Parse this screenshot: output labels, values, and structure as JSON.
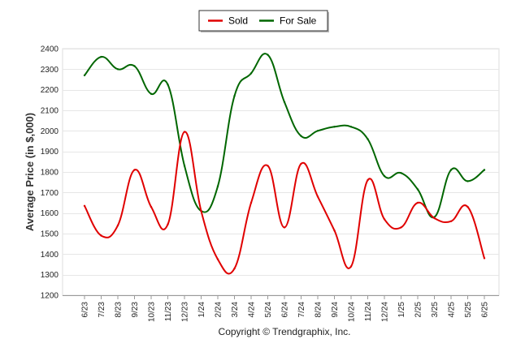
{
  "chart_data": {
    "type": "line",
    "ylabel": "Average Price (in $,000)",
    "yticks": [
      1200,
      1300,
      1400,
      1500,
      1600,
      1700,
      1800,
      1900,
      2000,
      2100,
      2200,
      2300,
      2400
    ],
    "ylim": [
      1200,
      2400
    ],
    "grid": true,
    "legend_position": "top-center",
    "categories": [
      "6/23",
      "7/23",
      "8/23",
      "9/23",
      "10/23",
      "11/23",
      "12/23",
      "1/24",
      "2/24",
      "3/24",
      "4/24",
      "5/24",
      "6/24",
      "7/24",
      "8/24",
      "9/24",
      "10/24",
      "11/24",
      "12/24",
      "1/25",
      "2/25",
      "3/25",
      "4/25",
      "5/25",
      "6/25"
    ],
    "series": [
      {
        "name": "Sold",
        "color": "#e00000",
        "values": [
          1635,
          1490,
          1540,
          1810,
          1630,
          1545,
          1995,
          1610,
          1375,
          1330,
          1650,
          1830,
          1530,
          1840,
          1680,
          1515,
          1340,
          1760,
          1570,
          1530,
          1650,
          1575,
          1560,
          1630,
          1380
        ]
      },
      {
        "name": "For Sale",
        "color": "#006600",
        "values": [
          2270,
          2360,
          2300,
          2315,
          2180,
          2225,
          1830,
          1610,
          1730,
          2170,
          2280,
          2370,
          2140,
          1975,
          2000,
          2020,
          2020,
          1960,
          1780,
          1795,
          1715,
          1580,
          1810,
          1755,
          1810
        ]
      }
    ]
  },
  "copyright": "Copyright © Trendgraphix, Inc."
}
